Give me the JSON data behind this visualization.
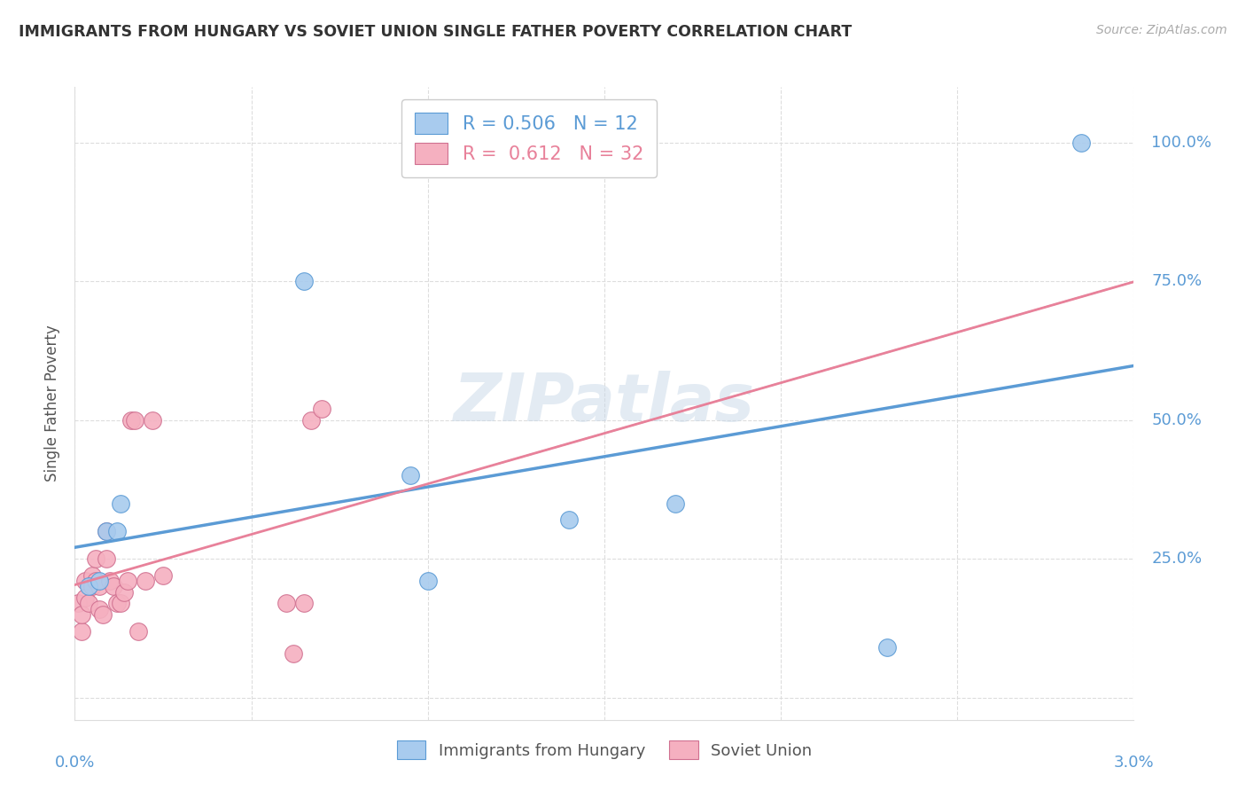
{
  "title": "IMMIGRANTS FROM HUNGARY VS SOVIET UNION SINGLE FATHER POVERTY CORRELATION CHART",
  "source": "Source: ZipAtlas.com",
  "ylabel": "Single Father Poverty",
  "yticks": [
    0.0,
    0.25,
    0.5,
    0.75,
    1.0
  ],
  "ytick_labels": [
    "",
    "25.0%",
    "50.0%",
    "75.0%",
    "100.0%"
  ],
  "xlim": [
    0.0,
    0.03
  ],
  "ylim": [
    -0.04,
    1.1
  ],
  "hungary_R": 0.506,
  "hungary_N": 12,
  "soviet_R": 0.612,
  "soviet_N": 32,
  "hungary_color": "#A8CBEE",
  "soviet_color": "#F5B0C0",
  "hungary_line_color": "#5B9BD5",
  "soviet_line_color": "#E8819A",
  "watermark": "ZIPatlas",
  "hungary_x": [
    0.0004,
    0.0007,
    0.0009,
    0.0012,
    0.0013,
    0.0065,
    0.0095,
    0.01,
    0.014,
    0.017,
    0.023,
    0.0285
  ],
  "hungary_y": [
    0.2,
    0.21,
    0.3,
    0.3,
    0.35,
    0.75,
    0.4,
    0.21,
    0.32,
    0.35,
    0.09,
    1.0
  ],
  "soviet_x": [
    0.0001,
    0.0002,
    0.0002,
    0.0003,
    0.0003,
    0.0004,
    0.0005,
    0.0005,
    0.0006,
    0.0006,
    0.0007,
    0.0007,
    0.0008,
    0.0009,
    0.0009,
    0.001,
    0.0011,
    0.0012,
    0.0013,
    0.0014,
    0.0015,
    0.0016,
    0.0017,
    0.0018,
    0.002,
    0.0022,
    0.0025,
    0.006,
    0.0062,
    0.0065,
    0.0067,
    0.007
  ],
  "soviet_y": [
    0.17,
    0.12,
    0.15,
    0.18,
    0.21,
    0.17,
    0.2,
    0.22,
    0.21,
    0.25,
    0.2,
    0.16,
    0.15,
    0.25,
    0.3,
    0.21,
    0.2,
    0.17,
    0.17,
    0.19,
    0.21,
    0.5,
    0.5,
    0.12,
    0.21,
    0.5,
    0.22,
    0.17,
    0.08,
    0.17,
    0.5,
    0.52
  ],
  "grid_color": "#DDDDDD",
  "xtick_positions": [
    0.0,
    0.005,
    0.01,
    0.015,
    0.02,
    0.025,
    0.03
  ]
}
